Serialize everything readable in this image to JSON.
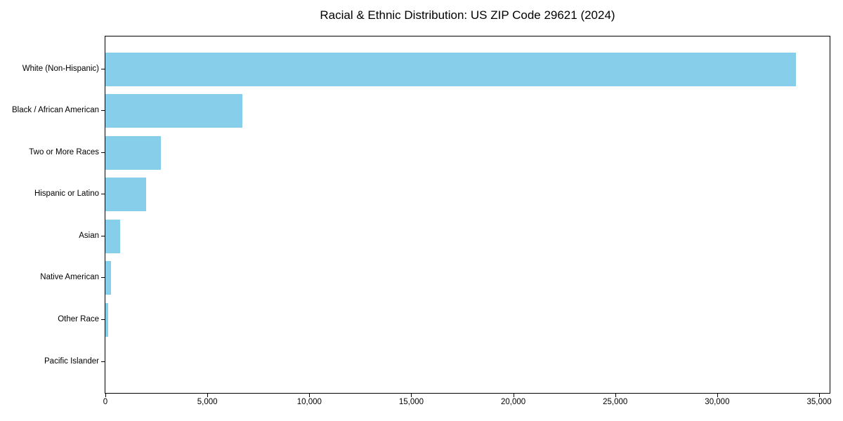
{
  "title": "Racial & Ethnic Distribution: US ZIP Code 29621 (2024)",
  "chart_data": {
    "type": "bar",
    "orientation": "horizontal",
    "title": "Racial & Ethnic Distribution: US ZIP Code 29621 (2024)",
    "categories": [
      "White (Non-Hispanic)",
      "Black / African American",
      "Two or More Races",
      "Hispanic or Latino",
      "Asian",
      "Native American",
      "Other Race",
      "Pacific Islander"
    ],
    "values": [
      33860,
      6700,
      2715,
      2000,
      720,
      290,
      135,
      0
    ],
    "xlabel": "",
    "ylabel": "",
    "xlim": [
      0,
      35515
    ],
    "xticks": [
      0,
      5000,
      10000,
      15000,
      20000,
      25000,
      30000,
      35000
    ],
    "xtick_labels": [
      "0",
      "5,000",
      "10,000",
      "15,000",
      "20,000",
      "25,000",
      "30,000",
      "35,000"
    ],
    "bar_color": "#87CEEB",
    "axis_color": "#000000",
    "background_color": "#ffffff",
    "grid": false,
    "legend": null
  }
}
